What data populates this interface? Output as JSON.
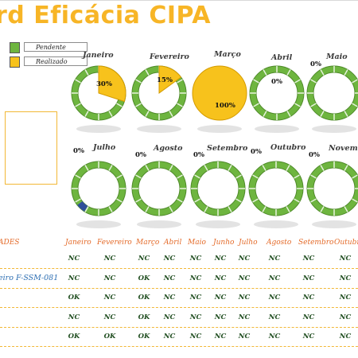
{
  "title": "rd Eficácia CIPA",
  "legend": [
    {
      "label": "Pendente",
      "color": "#6eb53f"
    },
    {
      "label": "Realizado",
      "color": "#f7c21c"
    }
  ],
  "colors": {
    "pending": "#6eb53f",
    "done": "#f7c21c",
    "header": "#e46b2a",
    "rule": "#f2b836"
  },
  "charts": [
    {
      "month": "Janeiro",
      "pct": "30%",
      "value": 0.3
    },
    {
      "month": "Fevereiro",
      "pct": "15%",
      "value": 0.15
    },
    {
      "month": "Março",
      "pct": "100%",
      "value": 1.0
    },
    {
      "month": "Abril",
      "pct": "0%",
      "value": 0
    },
    {
      "month": "Maio",
      "pct": "0%",
      "value": 0
    },
    {
      "month": "Julho",
      "pct": "0%",
      "value": 0
    },
    {
      "month": "Agosto",
      "pct": "0%",
      "value": 0
    },
    {
      "month": "Setembro",
      "pct": "0%",
      "value": 0
    },
    {
      "month": "Outubro",
      "pct": "0%",
      "value": 0
    },
    {
      "month": "Novembro",
      "pct": "0%",
      "value": 0
    }
  ],
  "table": {
    "first_header": "ADES",
    "headers": [
      "Janeiro",
      "Fevereiro",
      "Março",
      "Abril",
      "Maio",
      "Junho",
      "Julho",
      "Agosto",
      "Setembro",
      "Outubro"
    ],
    "rows": [
      {
        "label": "",
        "cells": [
          "NC",
          "NC",
          "NC",
          "NC",
          "NC",
          "NC",
          "NC",
          "NC",
          "NC",
          "NC"
        ]
      },
      {
        "label": "eiro F-SSM-081",
        "cells": [
          "NC",
          "NC",
          "OK",
          "NC",
          "NC",
          "NC",
          "NC",
          "NC",
          "NC",
          "NC"
        ]
      },
      {
        "label": "",
        "cells": [
          "OK",
          "NC",
          "OK",
          "NC",
          "NC",
          "NC",
          "NC",
          "NC",
          "NC",
          "NC"
        ]
      },
      {
        "label": "",
        "cells": [
          "NC",
          "NC",
          "OK",
          "NC",
          "NC",
          "NC",
          "NC",
          "NC",
          "NC",
          "NC"
        ]
      },
      {
        "label": "",
        "cells": [
          "OK",
          "OK",
          "OK",
          "NC",
          "NC",
          "NC",
          "NC",
          "NC",
          "NC",
          "NC"
        ]
      }
    ]
  }
}
